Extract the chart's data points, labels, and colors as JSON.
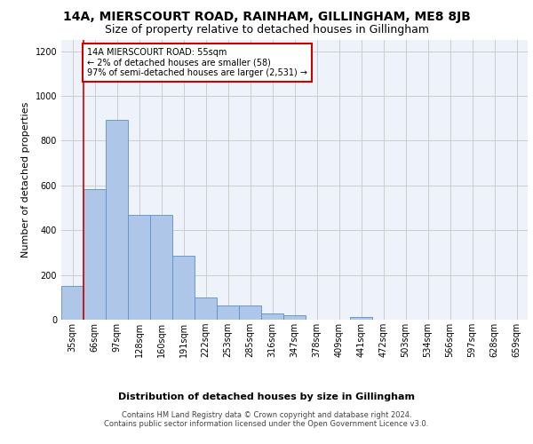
{
  "title_line1": "14A, MIERSCOURT ROAD, RAINHAM, GILLINGHAM, ME8 8JB",
  "title_line2": "Size of property relative to detached houses in Gillingham",
  "xlabel": "Distribution of detached houses by size in Gillingham",
  "ylabel": "Number of detached properties",
  "footer_line1": "Contains HM Land Registry data © Crown copyright and database right 2024.",
  "footer_line2": "Contains public sector information licensed under the Open Government Licence v3.0.",
  "categories": [
    "35sqm",
    "66sqm",
    "97sqm",
    "128sqm",
    "160sqm",
    "191sqm",
    "222sqm",
    "253sqm",
    "285sqm",
    "316sqm",
    "347sqm",
    "378sqm",
    "409sqm",
    "441sqm",
    "472sqm",
    "503sqm",
    "534sqm",
    "566sqm",
    "597sqm",
    "628sqm",
    "659sqm"
  ],
  "values": [
    152,
    585,
    893,
    468,
    468,
    285,
    100,
    62,
    62,
    28,
    18,
    0,
    0,
    13,
    0,
    0,
    0,
    0,
    0,
    0,
    0
  ],
  "bar_color": "#aec6e8",
  "bar_edge_color": "#5b8fc9",
  "annotation_line1": "14A MIERSCOURT ROAD: 55sqm",
  "annotation_line2": "← 2% of detached houses are smaller (58)",
  "annotation_line3": "97% of semi-detached houses are larger (2,531) →",
  "annotation_box_color": "#ffffff",
  "annotation_box_edge": "#cc0000",
  "vline_color": "#cc0000",
  "ylim": [
    0,
    1250
  ],
  "yticks": [
    0,
    200,
    400,
    600,
    800,
    1000,
    1200
  ],
  "grid_color": "#cccccc",
  "bg_color": "#eef2fa",
  "title_fontsize": 10,
  "subtitle_fontsize": 9,
  "axis_label_fontsize": 8,
  "tick_fontsize": 7,
  "footer_fontsize": 6
}
